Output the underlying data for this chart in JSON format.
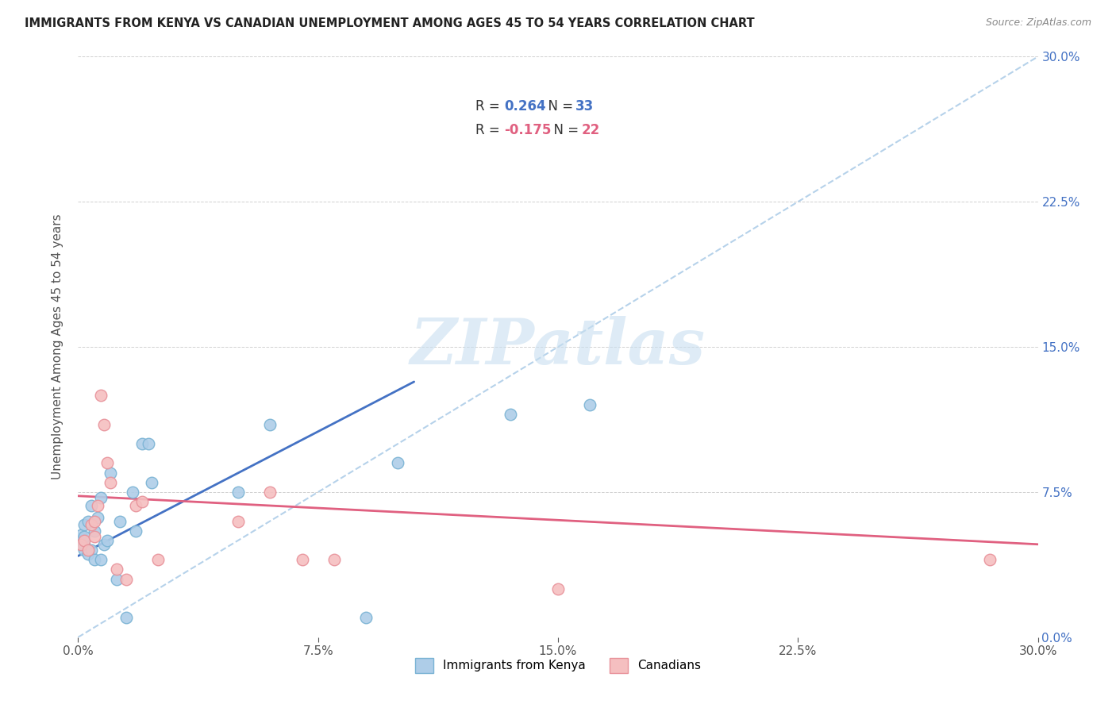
{
  "title": "IMMIGRANTS FROM KENYA VS CANADIAN UNEMPLOYMENT AMONG AGES 45 TO 54 YEARS CORRELATION CHART",
  "source": "Source: ZipAtlas.com",
  "ylabel": "Unemployment Among Ages 45 to 54 years",
  "xlim": [
    0.0,
    0.3
  ],
  "ylim": [
    0.0,
    0.3
  ],
  "xticks": [
    0.0,
    0.075,
    0.15,
    0.225,
    0.3
  ],
  "xticklabels": [
    "0.0%",
    "7.5%",
    "15.0%",
    "22.5%",
    "30.0%"
  ],
  "yticks": [
    0.0,
    0.075,
    0.15,
    0.225,
    0.3
  ],
  "yticklabels_right": [
    "0.0%",
    "7.5%",
    "15.0%",
    "22.5%",
    "30.0%"
  ],
  "blue_R": "0.264",
  "blue_N": "33",
  "pink_R": "-0.175",
  "pink_N": "22",
  "blue_scatter_x": [
    0.001,
    0.001,
    0.001,
    0.002,
    0.002,
    0.002,
    0.002,
    0.003,
    0.003,
    0.004,
    0.004,
    0.005,
    0.005,
    0.006,
    0.007,
    0.007,
    0.008,
    0.009,
    0.01,
    0.012,
    0.013,
    0.015,
    0.017,
    0.018,
    0.02,
    0.022,
    0.023,
    0.05,
    0.06,
    0.09,
    0.1,
    0.135,
    0.16
  ],
  "blue_scatter_y": [
    0.048,
    0.05,
    0.053,
    0.045,
    0.048,
    0.052,
    0.058,
    0.043,
    0.06,
    0.045,
    0.068,
    0.04,
    0.055,
    0.062,
    0.04,
    0.072,
    0.048,
    0.05,
    0.085,
    0.03,
    0.06,
    0.01,
    0.075,
    0.055,
    0.1,
    0.1,
    0.08,
    0.075,
    0.11,
    0.01,
    0.09,
    0.115,
    0.12
  ],
  "pink_scatter_x": [
    0.001,
    0.002,
    0.003,
    0.004,
    0.005,
    0.005,
    0.006,
    0.007,
    0.008,
    0.009,
    0.01,
    0.012,
    0.015,
    0.018,
    0.02,
    0.025,
    0.05,
    0.06,
    0.07,
    0.08,
    0.15,
    0.285
  ],
  "pink_scatter_y": [
    0.048,
    0.05,
    0.045,
    0.058,
    0.052,
    0.06,
    0.068,
    0.125,
    0.11,
    0.09,
    0.08,
    0.035,
    0.03,
    0.068,
    0.07,
    0.04,
    0.06,
    0.075,
    0.04,
    0.04,
    0.025,
    0.04
  ],
  "blue_line_x0": 0.0,
  "blue_line_x1": 0.105,
  "blue_line_y0": 0.042,
  "blue_line_y1": 0.132,
  "pink_line_x0": 0.0,
  "pink_line_x1": 0.3,
  "pink_line_y0": 0.073,
  "pink_line_y1": 0.048,
  "diag_line_x0": 0.0,
  "diag_line_x1": 0.3,
  "diag_line_y0": 0.0,
  "diag_line_y1": 0.3,
  "scatter_size": 110,
  "blue_marker_face": "#aecde8",
  "blue_marker_edge": "#7ab3d4",
  "pink_marker_face": "#f5bfc0",
  "pink_marker_edge": "#e8929a",
  "line_blue": "#4472c4",
  "line_pink": "#e06080",
  "dashed_color": "#aecde8",
  "watermark_color": "#c8dff0",
  "background_color": "#ffffff",
  "grid_color": "#cccccc",
  "title_color": "#222222",
  "source_color": "#888888",
  "axis_label_color": "#555555",
  "right_tick_color": "#4472c4"
}
